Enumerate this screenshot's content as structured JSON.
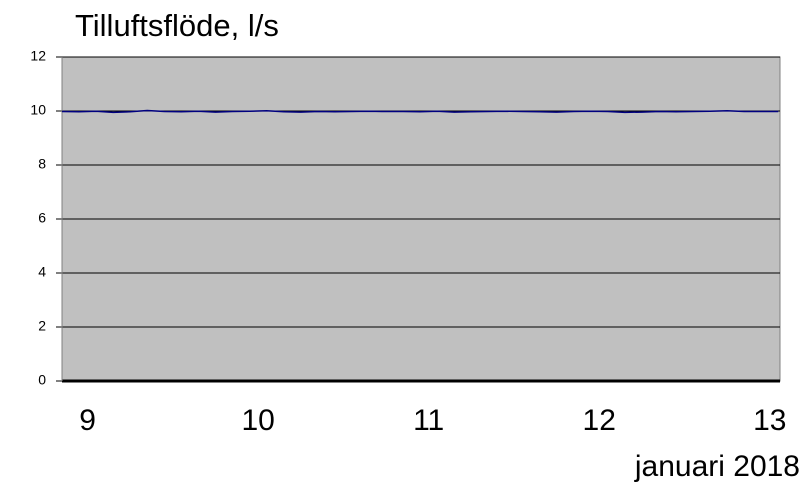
{
  "chart_data": {
    "type": "line",
    "title": "Tilluftsflöde, l/s",
    "x_label": "januari 2018",
    "x": [
      8.85,
      8.95,
      9.05,
      9.15,
      9.25,
      9.35,
      9.45,
      9.55,
      9.65,
      9.75,
      9.85,
      9.95,
      10.05,
      10.15,
      10.25,
      10.35,
      10.45,
      10.55,
      10.65,
      10.75,
      10.85,
      10.95,
      11.05,
      11.15,
      11.25,
      11.35,
      11.45,
      11.55,
      11.65,
      11.75,
      11.85,
      11.95,
      12.05,
      12.15,
      12.25,
      12.35,
      12.45,
      12.55,
      12.65,
      12.75,
      12.85,
      12.95,
      13.05
    ],
    "series": [
      {
        "color": "#00007f",
        "values": [
          9.98,
          9.97,
          9.99,
          9.95,
          9.97,
          10.02,
          9.98,
          9.97,
          9.99,
          9.96,
          9.98,
          9.99,
          10.01,
          9.97,
          9.96,
          9.98,
          9.97,
          9.98,
          9.99,
          9.98,
          9.98,
          9.97,
          9.99,
          9.96,
          9.97,
          9.98,
          9.99,
          9.98,
          9.97,
          9.96,
          9.98,
          9.99,
          9.98,
          9.95,
          9.96,
          9.98,
          9.97,
          9.98,
          9.99,
          10.01,
          9.98,
          9.98,
          9.98
        ]
      }
    ],
    "xlim": [
      8.85,
      13.06
    ],
    "xticks": [
      9,
      10,
      11,
      12,
      13
    ],
    "ylim": [
      0,
      12
    ],
    "yticks": [
      0,
      2,
      4,
      6,
      8,
      10,
      12
    ],
    "grid": true,
    "background": "#c0c0c0"
  }
}
